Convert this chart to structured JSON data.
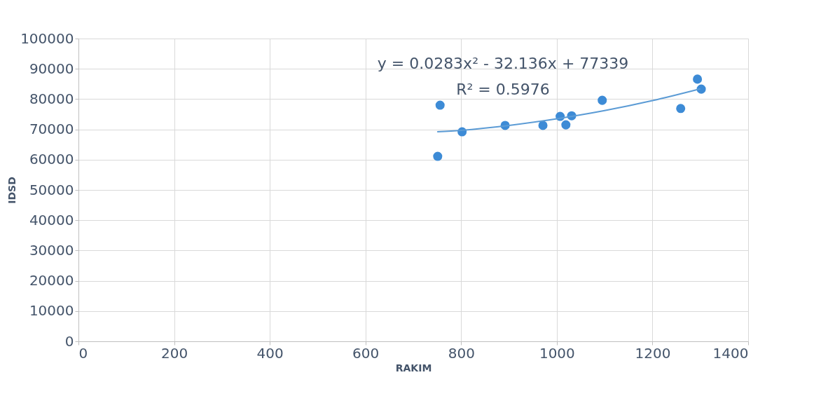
{
  "chart_data": {
    "type": "scatter",
    "xlabel": "RAKIM",
    "ylabel": "IDSD",
    "xlim": [
      0,
      1400
    ],
    "xticks": [
      0,
      200,
      400,
      600,
      800,
      1000,
      1200,
      1400
    ],
    "ylim": [
      0,
      100000
    ],
    "yticks": [
      0,
      10000,
      20000,
      30000,
      40000,
      50000,
      60000,
      70000,
      80000,
      90000,
      100000
    ],
    "grid": true,
    "marker": "circle",
    "annotations": [
      "y = 0.0283x² - 32.136x + 77339",
      "R² = 0.5976"
    ],
    "series": [
      {
        "color": "#3d8bd6",
        "x": [
          756,
          751,
          802,
          892,
          971,
          1007,
          1019,
          1031,
          1095,
          1259,
          1294,
          1302
        ],
        "values": [
          78000,
          61100,
          69200,
          71300,
          71300,
          74300,
          71500,
          74500,
          79600,
          76900,
          86600,
          83300
        ]
      },
      {
        "type": "line",
        "marker": "none",
        "color": "#5b9bd5",
        "x": [
          750,
          800,
          900,
          1000,
          1100,
          1200,
          1300
        ],
        "values": [
          69200,
          69700,
          71300,
          73500,
          76200,
          79500,
          83400
        ]
      }
    ]
  }
}
